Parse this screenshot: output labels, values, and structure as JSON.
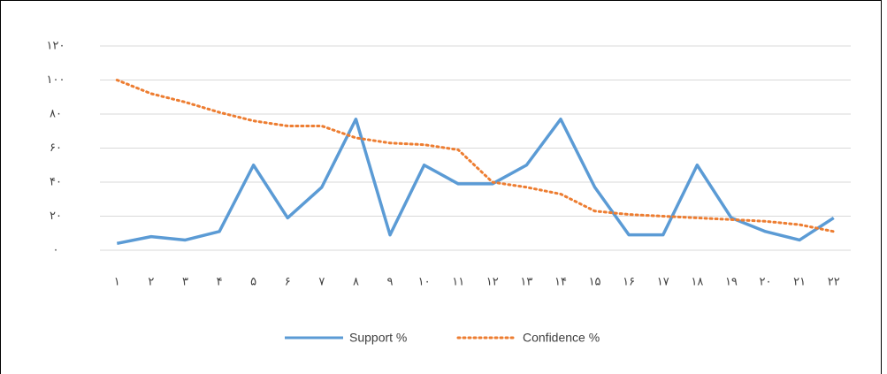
{
  "chart_data": {
    "type": "line",
    "categories": [
      "۱",
      "۲",
      "۳",
      "۴",
      "۵",
      "۶",
      "۷",
      "۸",
      "۹",
      "۱۰",
      "۱۱",
      "۱۲",
      "۱۳",
      "۱۴",
      "۱۵",
      "۱۶",
      "۱۷",
      "۱۸",
      "۱۹",
      "۲۰",
      "۲۱",
      "۲۲"
    ],
    "series": [
      {
        "name": "Support %",
        "color": "#5b9bd5",
        "style": "solid",
        "values": [
          4,
          8,
          6,
          11,
          50,
          19,
          37,
          77,
          9,
          50,
          39,
          39,
          50,
          77,
          37,
          9,
          9,
          50,
          19,
          11,
          6,
          19
        ]
      },
      {
        "name": "Confidence %",
        "color": "#ed7d31",
        "style": "dotted",
        "values": [
          100,
          92,
          87,
          81,
          76,
          73,
          73,
          66,
          63,
          62,
          59,
          40,
          37,
          33,
          23,
          21,
          20,
          19,
          18,
          17,
          15,
          11
        ]
      }
    ],
    "ylim": [
      0,
      120
    ],
    "yticks": [
      {
        "value": 0,
        "label": "۰"
      },
      {
        "value": 20,
        "label": "۲۰"
      },
      {
        "value": 40,
        "label": "۴۰"
      },
      {
        "value": 60,
        "label": "۶۰"
      },
      {
        "value": 80,
        "label": "۸۰"
      },
      {
        "value": 100,
        "label": "۱۰۰"
      },
      {
        "value": 120,
        "label": "۱۲۰"
      }
    ],
    "grid": true,
    "legend": "bottom"
  }
}
